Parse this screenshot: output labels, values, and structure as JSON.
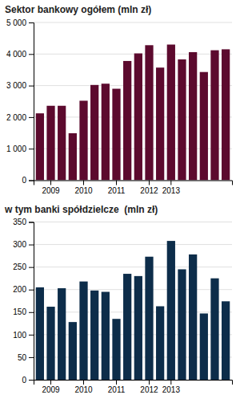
{
  "chart_data": [
    {
      "type": "bar",
      "title": "Sektor bankowy ogółem (mln zł)",
      "categories": [
        null,
        "2009",
        null,
        null,
        "2010",
        null,
        null,
        "2011",
        null,
        null,
        "2012",
        null,
        "2013",
        null,
        null,
        null,
        null,
        null
      ],
      "values": [
        2120,
        2360,
        2360,
        1490,
        2520,
        3020,
        3060,
        2900,
        3780,
        4020,
        4280,
        3570,
        4300,
        3830,
        4060,
        3430,
        4120,
        4150
      ],
      "color": "#5c0a2e",
      "ylim": [
        0,
        5000
      ],
      "yticks": [
        0,
        {
          "value": 1000,
          "label": "1 000"
        },
        {
          "value": 2000,
          "label": "2 000"
        },
        {
          "value": 3000,
          "label": "3 000"
        },
        {
          "value": 4000,
          "label": "4 000"
        },
        {
          "value": 5000,
          "label": "5 000"
        }
      ],
      "grid": true
    },
    {
      "type": "bar",
      "title": "w tym banki spółdzielcze  (mln zł)",
      "categories": [
        null,
        "2009",
        null,
        null,
        "2010",
        null,
        null,
        "2011",
        null,
        null,
        "2012",
        null,
        "2013",
        null,
        null,
        null,
        null,
        null
      ],
      "values": [
        205,
        162,
        203,
        128,
        218,
        198,
        195,
        135,
        235,
        230,
        273,
        163,
        308,
        245,
        278,
        147,
        225,
        174
      ],
      "color": "#0d2d4a",
      "ylim": [
        0,
        350
      ],
      "yticks": [
        0,
        50,
        100,
        150,
        200,
        250,
        300,
        350
      ],
      "grid": true
    }
  ]
}
